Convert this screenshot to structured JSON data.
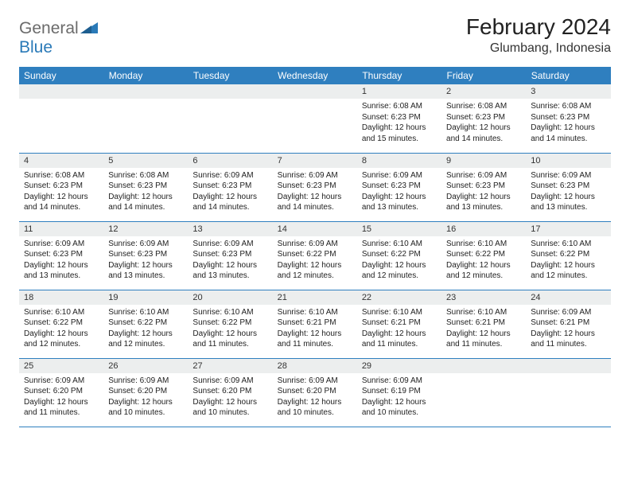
{
  "logo": {
    "general": "General",
    "blue": "Blue"
  },
  "title": "February 2024",
  "location": "Glumbang, Indonesia",
  "colors": {
    "header_bg": "#2f7fbf",
    "header_text": "#ffffff",
    "daynum_bg": "#eceeee",
    "border": "#2f7fbf",
    "logo_gray": "#6b6b6b",
    "logo_blue": "#2a7ab8"
  },
  "weekdays": [
    "Sunday",
    "Monday",
    "Tuesday",
    "Wednesday",
    "Thursday",
    "Friday",
    "Saturday"
  ],
  "weeks": [
    [
      {
        "n": "",
        "sunrise": "",
        "sunset": "",
        "daylight": ""
      },
      {
        "n": "",
        "sunrise": "",
        "sunset": "",
        "daylight": ""
      },
      {
        "n": "",
        "sunrise": "",
        "sunset": "",
        "daylight": ""
      },
      {
        "n": "",
        "sunrise": "",
        "sunset": "",
        "daylight": ""
      },
      {
        "n": "1",
        "sunrise": "Sunrise: 6:08 AM",
        "sunset": "Sunset: 6:23 PM",
        "daylight": "Daylight: 12 hours and 15 minutes."
      },
      {
        "n": "2",
        "sunrise": "Sunrise: 6:08 AM",
        "sunset": "Sunset: 6:23 PM",
        "daylight": "Daylight: 12 hours and 14 minutes."
      },
      {
        "n": "3",
        "sunrise": "Sunrise: 6:08 AM",
        "sunset": "Sunset: 6:23 PM",
        "daylight": "Daylight: 12 hours and 14 minutes."
      }
    ],
    [
      {
        "n": "4",
        "sunrise": "Sunrise: 6:08 AM",
        "sunset": "Sunset: 6:23 PM",
        "daylight": "Daylight: 12 hours and 14 minutes."
      },
      {
        "n": "5",
        "sunrise": "Sunrise: 6:08 AM",
        "sunset": "Sunset: 6:23 PM",
        "daylight": "Daylight: 12 hours and 14 minutes."
      },
      {
        "n": "6",
        "sunrise": "Sunrise: 6:09 AM",
        "sunset": "Sunset: 6:23 PM",
        "daylight": "Daylight: 12 hours and 14 minutes."
      },
      {
        "n": "7",
        "sunrise": "Sunrise: 6:09 AM",
        "sunset": "Sunset: 6:23 PM",
        "daylight": "Daylight: 12 hours and 14 minutes."
      },
      {
        "n": "8",
        "sunrise": "Sunrise: 6:09 AM",
        "sunset": "Sunset: 6:23 PM",
        "daylight": "Daylight: 12 hours and 13 minutes."
      },
      {
        "n": "9",
        "sunrise": "Sunrise: 6:09 AM",
        "sunset": "Sunset: 6:23 PM",
        "daylight": "Daylight: 12 hours and 13 minutes."
      },
      {
        "n": "10",
        "sunrise": "Sunrise: 6:09 AM",
        "sunset": "Sunset: 6:23 PM",
        "daylight": "Daylight: 12 hours and 13 minutes."
      }
    ],
    [
      {
        "n": "11",
        "sunrise": "Sunrise: 6:09 AM",
        "sunset": "Sunset: 6:23 PM",
        "daylight": "Daylight: 12 hours and 13 minutes."
      },
      {
        "n": "12",
        "sunrise": "Sunrise: 6:09 AM",
        "sunset": "Sunset: 6:23 PM",
        "daylight": "Daylight: 12 hours and 13 minutes."
      },
      {
        "n": "13",
        "sunrise": "Sunrise: 6:09 AM",
        "sunset": "Sunset: 6:23 PM",
        "daylight": "Daylight: 12 hours and 13 minutes."
      },
      {
        "n": "14",
        "sunrise": "Sunrise: 6:09 AM",
        "sunset": "Sunset: 6:22 PM",
        "daylight": "Daylight: 12 hours and 12 minutes."
      },
      {
        "n": "15",
        "sunrise": "Sunrise: 6:10 AM",
        "sunset": "Sunset: 6:22 PM",
        "daylight": "Daylight: 12 hours and 12 minutes."
      },
      {
        "n": "16",
        "sunrise": "Sunrise: 6:10 AM",
        "sunset": "Sunset: 6:22 PM",
        "daylight": "Daylight: 12 hours and 12 minutes."
      },
      {
        "n": "17",
        "sunrise": "Sunrise: 6:10 AM",
        "sunset": "Sunset: 6:22 PM",
        "daylight": "Daylight: 12 hours and 12 minutes."
      }
    ],
    [
      {
        "n": "18",
        "sunrise": "Sunrise: 6:10 AM",
        "sunset": "Sunset: 6:22 PM",
        "daylight": "Daylight: 12 hours and 12 minutes."
      },
      {
        "n": "19",
        "sunrise": "Sunrise: 6:10 AM",
        "sunset": "Sunset: 6:22 PM",
        "daylight": "Daylight: 12 hours and 12 minutes."
      },
      {
        "n": "20",
        "sunrise": "Sunrise: 6:10 AM",
        "sunset": "Sunset: 6:22 PM",
        "daylight": "Daylight: 12 hours and 11 minutes."
      },
      {
        "n": "21",
        "sunrise": "Sunrise: 6:10 AM",
        "sunset": "Sunset: 6:21 PM",
        "daylight": "Daylight: 12 hours and 11 minutes."
      },
      {
        "n": "22",
        "sunrise": "Sunrise: 6:10 AM",
        "sunset": "Sunset: 6:21 PM",
        "daylight": "Daylight: 12 hours and 11 minutes."
      },
      {
        "n": "23",
        "sunrise": "Sunrise: 6:10 AM",
        "sunset": "Sunset: 6:21 PM",
        "daylight": "Daylight: 12 hours and 11 minutes."
      },
      {
        "n": "24",
        "sunrise": "Sunrise: 6:09 AM",
        "sunset": "Sunset: 6:21 PM",
        "daylight": "Daylight: 12 hours and 11 minutes."
      }
    ],
    [
      {
        "n": "25",
        "sunrise": "Sunrise: 6:09 AM",
        "sunset": "Sunset: 6:20 PM",
        "daylight": "Daylight: 12 hours and 11 minutes."
      },
      {
        "n": "26",
        "sunrise": "Sunrise: 6:09 AM",
        "sunset": "Sunset: 6:20 PM",
        "daylight": "Daylight: 12 hours and 10 minutes."
      },
      {
        "n": "27",
        "sunrise": "Sunrise: 6:09 AM",
        "sunset": "Sunset: 6:20 PM",
        "daylight": "Daylight: 12 hours and 10 minutes."
      },
      {
        "n": "28",
        "sunrise": "Sunrise: 6:09 AM",
        "sunset": "Sunset: 6:20 PM",
        "daylight": "Daylight: 12 hours and 10 minutes."
      },
      {
        "n": "29",
        "sunrise": "Sunrise: 6:09 AM",
        "sunset": "Sunset: 6:19 PM",
        "daylight": "Daylight: 12 hours and 10 minutes."
      },
      {
        "n": "",
        "sunrise": "",
        "sunset": "",
        "daylight": ""
      },
      {
        "n": "",
        "sunrise": "",
        "sunset": "",
        "daylight": ""
      }
    ]
  ]
}
